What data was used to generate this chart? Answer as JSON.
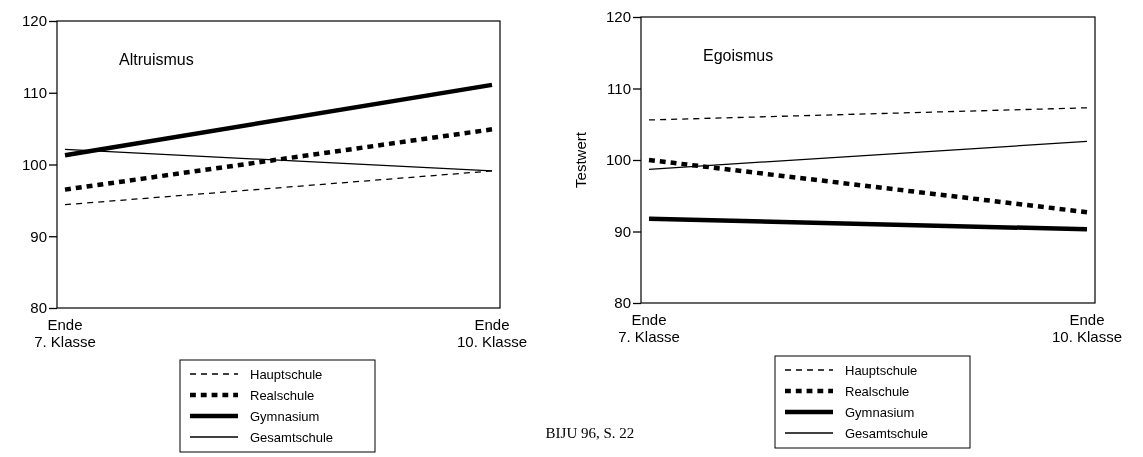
{
  "chart_data": [
    {
      "type": "line",
      "title": "Altruismus",
      "categories": [
        "Ende\n7. Klasse",
        "Ende\n10. Klasse"
      ],
      "ylim": [
        80,
        120
      ],
      "yticks": [
        80,
        90,
        100,
        110,
        120
      ],
      "grid": false,
      "legend": "bottom",
      "annotations": [
        "BIJU 96, S. 22"
      ],
      "series": [
        {
          "name": "Hauptschule",
          "color": "#000000",
          "line_style": "dashed",
          "values": [
            94.4,
            99.1
          ]
        },
        {
          "name": "Realschule",
          "color": "#000000",
          "line_style": "dotted",
          "values": [
            96.5,
            104.9
          ]
        },
        {
          "name": "Gymnasium",
          "color": "#000000",
          "line_style": "solid",
          "values": [
            101.3,
            111.1
          ]
        },
        {
          "name": "Gesamtschule",
          "color": "#000000",
          "line_style": "solid",
          "values": [
            102.1,
            99.1
          ]
        }
      ]
    },
    {
      "type": "line",
      "title": "Egoismus",
      "ylabel": "Testwert",
      "categories": [
        "Ende\n7. Klasse",
        "Ende\n10. Klasse"
      ],
      "ylim": [
        80,
        120
      ],
      "yticks": [
        80,
        90,
        100,
        110,
        120
      ],
      "grid": false,
      "legend": "bottom",
      "series": [
        {
          "name": "Hauptschule",
          "color": "#000000",
          "line_style": "dashed",
          "values": [
            105.6,
            107.3
          ]
        },
        {
          "name": "Realschule",
          "color": "#000000",
          "line_style": "dotted",
          "values": [
            100,
            92.7
          ]
        },
        {
          "name": "Gymnasium",
          "color": "#000000",
          "line_style": "solid",
          "values": [
            91.8,
            90.3
          ]
        },
        {
          "name": "Gesamtschule",
          "color": "#000000",
          "line_style": "solid",
          "values": [
            98.7,
            102.6
          ]
        }
      ]
    }
  ]
}
